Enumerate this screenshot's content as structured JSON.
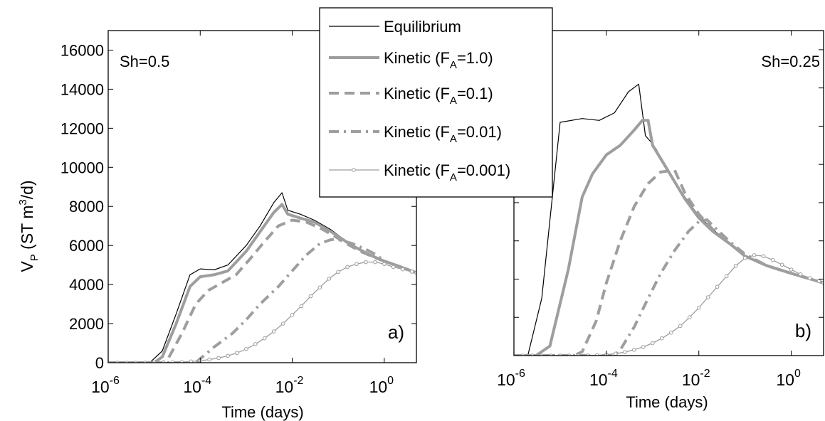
{
  "figure": {
    "ylabel_main": "V",
    "ylabel_sub": "P",
    "ylabel_rest": " (ST m",
    "ylabel_sup": "3",
    "ylabel_end": "/d)",
    "xlabel": "Time (days)"
  },
  "legend": {
    "entries": [
      {
        "label": "Equilibrium",
        "label_sub": "",
        "label_end": ""
      },
      {
        "label": "Kinetic (F",
        "label_sub": "A",
        "label_end": "=1.0)"
      },
      {
        "label": "Kinetic (F",
        "label_sub": "A",
        "label_end": "=0.1)"
      },
      {
        "label": "Kinetic (F",
        "label_sub": "A",
        "label_end": "=0.01)"
      },
      {
        "label": "Kinetic (F",
        "label_sub": "A",
        "label_end": "=0.001)"
      }
    ]
  },
  "colors": {
    "equilibrium": "#000000",
    "kinetic": "#9e9e9e"
  },
  "chart_data": [
    {
      "type": "line",
      "panel_label": "a)",
      "annotation": "Sh=0.5",
      "xlabel": "Time (days)",
      "ylabel": "V_P (ST m^3/d)",
      "xscale": "log",
      "xlim": [
        1e-06,
        5
      ],
      "ylim": [
        0,
        17000
      ],
      "x_ticks": [
        {
          "base": "10",
          "exp": "-6"
        },
        {
          "base": "10",
          "exp": "-4"
        },
        {
          "base": "10",
          "exp": "-2"
        },
        {
          "base": "10",
          "exp": "0"
        }
      ],
      "y_ticks": [
        "0",
        "2000",
        "4000",
        "6000",
        "8000",
        "10000",
        "12000",
        "14000",
        "16000"
      ],
      "series": [
        {
          "name": "Equilibrium",
          "x": [
            1e-06,
            8e-06,
            1.5e-05,
            3e-05,
            6e-05,
            0.0001,
            0.0002,
            0.0004,
            0.001,
            0.002,
            0.004,
            0.006,
            0.008,
            0.015,
            0.03,
            0.07,
            0.2,
            0.5,
            1,
            2,
            5
          ],
          "y": [
            0,
            0,
            600,
            2500,
            4500,
            4800,
            4750,
            5000,
            6000,
            7000,
            8200,
            8700,
            7800,
            7600,
            7300,
            6800,
            6000,
            5500,
            5200,
            4950,
            4600
          ]
        },
        {
          "name": "Kinetic (FA=1.0)",
          "x": [
            1e-06,
            1e-05,
            1.5e-05,
            3e-05,
            6e-05,
            0.0001,
            0.0002,
            0.0004,
            0.001,
            0.002,
            0.004,
            0.006,
            0.008,
            0.015,
            0.03,
            0.07,
            0.2,
            0.5,
            1,
            2,
            5
          ],
          "y": [
            0,
            0,
            300,
            2000,
            3900,
            4400,
            4500,
            4700,
            5700,
            6700,
            7700,
            8100,
            7600,
            7400,
            7200,
            6700,
            6000,
            5500,
            5200,
            4950,
            4600
          ]
        },
        {
          "name": "Kinetic (FA=0.1)",
          "x": [
            1e-06,
            1.5e-05,
            2e-05,
            4e-05,
            8e-05,
            0.00015,
            0.0003,
            0.0006,
            0.0012,
            0.0025,
            0.005,
            0.01,
            0.02,
            0.04,
            0.08,
            0.15,
            0.3,
            0.6,
            1,
            2,
            5
          ],
          "y": [
            0,
            0,
            200,
            1500,
            3000,
            3700,
            4100,
            4500,
            5300,
            6200,
            7000,
            7300,
            7200,
            6900,
            6500,
            6100,
            5700,
            5400,
            5200,
            4950,
            4600
          ]
        },
        {
          "name": "Kinetic (FA=0.01)",
          "x": [
            1e-06,
            8e-05,
            0.0001,
            0.0002,
            0.0005,
            0.001,
            0.002,
            0.005,
            0.01,
            0.02,
            0.04,
            0.07,
            0.1,
            0.2,
            0.4,
            0.7,
            1,
            2,
            5
          ],
          "y": [
            0,
            0,
            200,
            800,
            1500,
            2200,
            3000,
            3900,
            4700,
            5500,
            6100,
            6300,
            6300,
            6100,
            5800,
            5500,
            5200,
            4950,
            4600
          ]
        },
        {
          "name": "Kinetic (FA=0.001)",
          "markers": true,
          "x": [
            1e-06,
            1.58e-06,
            2.51e-06,
            3.98e-06,
            6.31e-06,
            1e-05,
            1.58e-05,
            2.51e-05,
            3.98e-05,
            6.31e-05,
            0.0001,
            0.000158,
            0.000251,
            0.000398,
            0.000631,
            0.001,
            0.00158,
            0.00251,
            0.00398,
            0.00631,
            0.01,
            0.0158,
            0.0251,
            0.0398,
            0.0631,
            0.1,
            0.158,
            0.251,
            0.398,
            0.631,
            1,
            1.58,
            2.51,
            3.98,
            5
          ],
          "y": [
            0,
            0,
            0,
            0,
            0,
            0,
            5,
            15,
            30,
            60,
            100,
            160,
            240,
            350,
            500,
            700,
            950,
            1250,
            1600,
            2000,
            2450,
            2900,
            3400,
            3850,
            4300,
            4650,
            4900,
            5050,
            5150,
            5150,
            5050,
            4900,
            4780,
            4660,
            4600
          ]
        }
      ]
    },
    {
      "type": "line",
      "panel_label": "b)",
      "annotation": "Sh=0.25",
      "xlabel": "Time (days)",
      "ylabel": "",
      "xscale": "log",
      "xlim": [
        1e-06,
        5
      ],
      "ylim": [
        0,
        17000
      ],
      "x_ticks": [
        {
          "base": "10",
          "exp": "-6"
        },
        {
          "base": "10",
          "exp": "-4"
        },
        {
          "base": "10",
          "exp": "-2"
        },
        {
          "base": "10",
          "exp": "0"
        }
      ],
      "y_ticks": [],
      "series": [
        {
          "name": "Equilibrium",
          "x": [
            1e-06,
            2e-06,
            4e-06,
            1e-05,
            3e-05,
            7e-05,
            0.00015,
            0.0003,
            0.0005,
            0.0007,
            0.0009,
            0.0012,
            0.002,
            0.005,
            0.01,
            0.02,
            0.05,
            0.1,
            0.3,
            1,
            5
          ],
          "y": [
            0,
            0,
            3000,
            12200,
            12400,
            12300,
            12700,
            13800,
            14200,
            11500,
            11200,
            10800,
            9800,
            8300,
            7300,
            6600,
            5800,
            5200,
            4700,
            4300,
            3800
          ]
        },
        {
          "name": "Kinetic (FA=1.0)",
          "x": [
            1e-06,
            3e-06,
            6e-06,
            1.5e-05,
            3e-05,
            5e-05,
            0.0001,
            0.0002,
            0.0004,
            0.0006,
            0.0008,
            0.001,
            0.002,
            0.005,
            0.01,
            0.02,
            0.05,
            0.1,
            0.3,
            1,
            5
          ],
          "y": [
            0,
            0,
            500,
            4500,
            8300,
            9500,
            10500,
            11000,
            11800,
            12300,
            12300,
            11000,
            9800,
            8200,
            7200,
            6500,
            5800,
            5200,
            4700,
            4300,
            3800
          ]
        },
        {
          "name": "Kinetic (FA=0.1)",
          "x": [
            1e-06,
            2e-05,
            3e-05,
            6e-05,
            0.0001,
            0.0002,
            0.0004,
            0.0008,
            0.0015,
            0.003,
            0.005,
            0.01,
            0.02,
            0.05,
            0.1,
            0.3,
            1,
            5
          ],
          "y": [
            0,
            0,
            200,
            1800,
            3800,
            6000,
            7800,
            9000,
            9600,
            9700,
            8500,
            7400,
            6600,
            5800,
            5200,
            4700,
            4300,
            3800
          ]
        },
        {
          "name": "Kinetic (FA=0.01)",
          "x": [
            1e-06,
            0.00015,
            0.0002,
            0.0004,
            0.0008,
            0.0015,
            0.003,
            0.006,
            0.01,
            0.015,
            0.02,
            0.03,
            0.05,
            0.1,
            0.3,
            1,
            5
          ],
          "y": [
            0,
            0,
            300,
            1500,
            3000,
            4300,
            5500,
            6500,
            7000,
            7100,
            6800,
            6400,
            5900,
            5300,
            4700,
            4300,
            3800
          ]
        },
        {
          "name": "Kinetic (FA=0.001)",
          "markers": true,
          "x": [
            1e-06,
            1.58e-06,
            2.51e-06,
            3.98e-06,
            6.31e-06,
            1e-05,
            1.58e-05,
            2.51e-05,
            3.98e-05,
            6.31e-05,
            0.0001,
            0.000158,
            0.000251,
            0.000398,
            0.000631,
            0.001,
            0.00158,
            0.00251,
            0.00398,
            0.00631,
            0.01,
            0.0158,
            0.0251,
            0.0398,
            0.0631,
            0.1,
            0.158,
            0.251,
            0.398,
            0.631,
            1,
            1.58,
            2.51,
            3.98,
            5
          ],
          "y": [
            0,
            0,
            0,
            0,
            0,
            0,
            0,
            0,
            5,
            20,
            50,
            100,
            180,
            300,
            450,
            650,
            900,
            1200,
            1550,
            2000,
            2500,
            3050,
            3600,
            4150,
            4700,
            5100,
            5250,
            5200,
            5000,
            4750,
            4500,
            4250,
            4050,
            3900,
            3800
          ]
        }
      ]
    }
  ]
}
